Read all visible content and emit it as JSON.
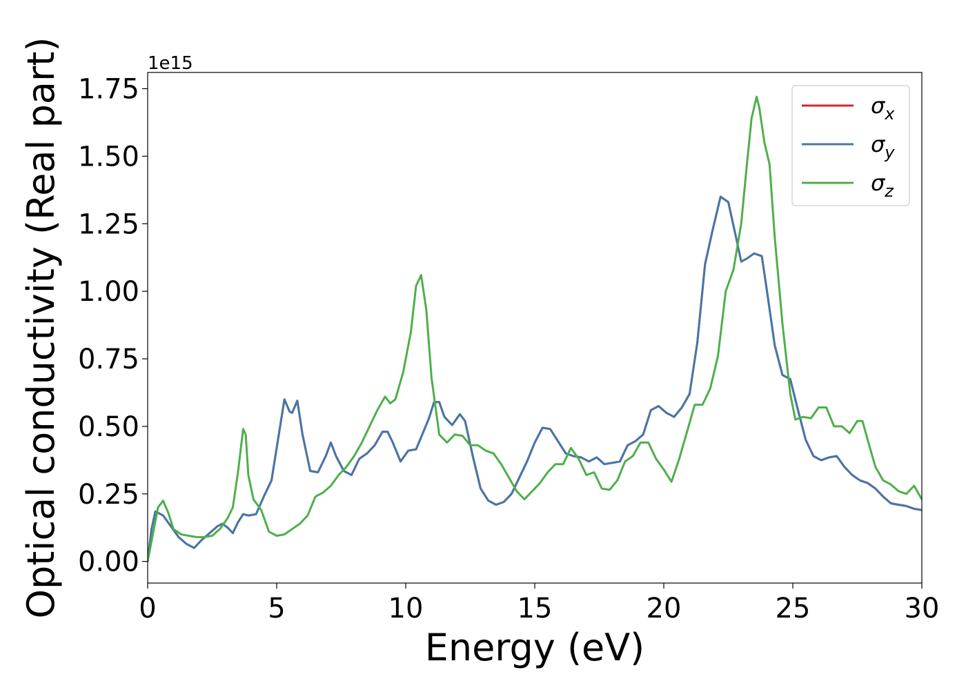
{
  "chart_data": {
    "type": "line",
    "xlabel": "Energy (eV)",
    "ylabel": "Optical conductivity (Real part)",
    "y_offset_label": "1e15",
    "y_scale_factor": 1000000000000000.0,
    "xlim": [
      0,
      30
    ],
    "ylim": [
      -0.08,
      1.81
    ],
    "xticks": [
      0,
      5,
      10,
      15,
      20,
      25,
      30
    ],
    "xtick_labels": [
      "0",
      "5",
      "10",
      "15",
      "20",
      "25",
      "30"
    ],
    "yticks": [
      0.0,
      0.25,
      0.5,
      0.75,
      1.0,
      1.25,
      1.5,
      1.75
    ],
    "ytick_labels": [
      "0.00",
      "0.25",
      "0.50",
      "0.75",
      "1.00",
      "1.25",
      "1.50",
      "1.75"
    ],
    "grid": false,
    "legend": {
      "placement": "top-right",
      "entries": [
        {
          "symbol": "σ",
          "sub": "x",
          "color": "#d62728"
        },
        {
          "symbol": "σ",
          "sub": "y",
          "color": "#4477aa"
        },
        {
          "symbol": "σ",
          "sub": "z",
          "color": "#4daf4a"
        }
      ]
    },
    "series": [
      {
        "name": "σx",
        "color": "#d62728",
        "x": [
          0.0,
          0.15,
          0.3,
          0.6,
          0.9,
          1.2,
          1.5,
          1.8,
          2.1,
          2.4,
          2.7,
          2.9,
          3.1,
          3.3,
          3.5,
          3.7,
          3.9,
          4.2,
          4.5,
          4.8,
          5.0,
          5.3,
          5.5,
          5.6,
          5.8,
          6.0,
          6.3,
          6.6,
          6.9,
          7.1,
          7.3,
          7.6,
          7.9,
          8.2,
          8.5,
          8.8,
          9.1,
          9.3,
          9.5,
          9.8,
          10.1,
          10.4,
          10.6,
          10.9,
          11.1,
          11.3,
          11.5,
          11.8,
          12.1,
          12.3,
          12.6,
          12.9,
          13.2,
          13.5,
          13.8,
          14.1,
          14.4,
          14.7,
          15.0,
          15.3,
          15.6,
          15.9,
          16.2,
          16.5,
          16.8,
          17.1,
          17.4,
          17.7,
          18.0,
          18.3,
          18.6,
          18.9,
          19.2,
          19.5,
          19.8,
          20.1,
          20.4,
          20.7,
          21.0,
          21.3,
          21.6,
          21.9,
          22.2,
          22.5,
          22.8,
          23.0,
          23.2,
          23.5,
          23.8,
          24.0,
          24.3,
          24.6,
          24.9,
          25.2,
          25.5,
          25.8,
          26.1,
          26.4,
          26.7,
          27.0,
          27.3,
          27.6,
          27.9,
          28.2,
          28.5,
          28.8,
          29.1,
          29.4,
          29.7,
          30.0
        ],
        "y": [
          0.0,
          0.12,
          0.185,
          0.17,
          0.13,
          0.09,
          0.065,
          0.05,
          0.08,
          0.105,
          0.13,
          0.14,
          0.125,
          0.105,
          0.145,
          0.175,
          0.17,
          0.175,
          0.24,
          0.3,
          0.42,
          0.6,
          0.555,
          0.55,
          0.595,
          0.47,
          0.335,
          0.33,
          0.39,
          0.44,
          0.39,
          0.335,
          0.32,
          0.38,
          0.4,
          0.43,
          0.48,
          0.48,
          0.44,
          0.37,
          0.41,
          0.415,
          0.46,
          0.53,
          0.59,
          0.59,
          0.535,
          0.505,
          0.545,
          0.52,
          0.39,
          0.27,
          0.225,
          0.21,
          0.22,
          0.25,
          0.31,
          0.37,
          0.44,
          0.495,
          0.49,
          0.445,
          0.4,
          0.39,
          0.385,
          0.37,
          0.385,
          0.36,
          0.365,
          0.37,
          0.43,
          0.445,
          0.47,
          0.56,
          0.575,
          0.55,
          0.535,
          0.57,
          0.62,
          0.81,
          1.1,
          1.23,
          1.35,
          1.33,
          1.2,
          1.11,
          1.12,
          1.14,
          1.13,
          1.0,
          0.8,
          0.69,
          0.675,
          0.56,
          0.45,
          0.39,
          0.375,
          0.385,
          0.39,
          0.35,
          0.32,
          0.3,
          0.29,
          0.27,
          0.24,
          0.215,
          0.21,
          0.205,
          0.195,
          0.19
        ]
      },
      {
        "name": "σy",
        "color": "#4477aa",
        "x": [
          0.0,
          0.15,
          0.3,
          0.6,
          0.9,
          1.2,
          1.5,
          1.8,
          2.1,
          2.4,
          2.7,
          2.9,
          3.1,
          3.3,
          3.5,
          3.7,
          3.9,
          4.2,
          4.5,
          4.8,
          5.0,
          5.3,
          5.5,
          5.6,
          5.8,
          6.0,
          6.3,
          6.6,
          6.9,
          7.1,
          7.3,
          7.6,
          7.9,
          8.2,
          8.5,
          8.8,
          9.1,
          9.3,
          9.5,
          9.8,
          10.1,
          10.4,
          10.6,
          10.9,
          11.1,
          11.3,
          11.5,
          11.8,
          12.1,
          12.3,
          12.6,
          12.9,
          13.2,
          13.5,
          13.8,
          14.1,
          14.4,
          14.7,
          15.0,
          15.3,
          15.6,
          15.9,
          16.2,
          16.5,
          16.8,
          17.1,
          17.4,
          17.7,
          18.0,
          18.3,
          18.6,
          18.9,
          19.2,
          19.5,
          19.8,
          20.1,
          20.4,
          20.7,
          21.0,
          21.3,
          21.6,
          21.9,
          22.2,
          22.5,
          22.8,
          23.0,
          23.2,
          23.5,
          23.8,
          24.0,
          24.3,
          24.6,
          24.9,
          25.2,
          25.5,
          25.8,
          26.1,
          26.4,
          26.7,
          27.0,
          27.3,
          27.6,
          27.9,
          28.2,
          28.5,
          28.8,
          29.1,
          29.4,
          29.7,
          30.0
        ],
        "y": [
          0.0,
          0.12,
          0.185,
          0.17,
          0.13,
          0.09,
          0.065,
          0.05,
          0.08,
          0.105,
          0.13,
          0.14,
          0.125,
          0.105,
          0.145,
          0.175,
          0.17,
          0.175,
          0.24,
          0.3,
          0.42,
          0.6,
          0.555,
          0.55,
          0.595,
          0.47,
          0.335,
          0.33,
          0.39,
          0.44,
          0.39,
          0.335,
          0.32,
          0.38,
          0.4,
          0.43,
          0.48,
          0.48,
          0.44,
          0.37,
          0.41,
          0.415,
          0.46,
          0.53,
          0.59,
          0.59,
          0.535,
          0.505,
          0.545,
          0.52,
          0.39,
          0.27,
          0.225,
          0.21,
          0.22,
          0.25,
          0.31,
          0.37,
          0.44,
          0.495,
          0.49,
          0.445,
          0.4,
          0.39,
          0.385,
          0.37,
          0.385,
          0.36,
          0.365,
          0.37,
          0.43,
          0.445,
          0.47,
          0.56,
          0.575,
          0.55,
          0.535,
          0.57,
          0.62,
          0.81,
          1.1,
          1.23,
          1.35,
          1.33,
          1.2,
          1.11,
          1.12,
          1.14,
          1.13,
          1.0,
          0.8,
          0.69,
          0.675,
          0.56,
          0.45,
          0.39,
          0.375,
          0.385,
          0.39,
          0.35,
          0.32,
          0.3,
          0.29,
          0.27,
          0.24,
          0.215,
          0.21,
          0.205,
          0.195,
          0.19
        ]
      },
      {
        "name": "σz",
        "color": "#4daf4a",
        "x": [
          0.0,
          0.2,
          0.4,
          0.6,
          0.8,
          1.0,
          1.3,
          1.6,
          1.9,
          2.2,
          2.5,
          2.8,
          3.1,
          3.3,
          3.5,
          3.7,
          3.8,
          3.9,
          4.1,
          4.4,
          4.7,
          5.0,
          5.3,
          5.6,
          5.9,
          6.2,
          6.5,
          6.8,
          7.1,
          7.4,
          7.7,
          8.0,
          8.3,
          8.6,
          8.9,
          9.2,
          9.4,
          9.6,
          9.9,
          10.2,
          10.4,
          10.6,
          10.8,
          11.0,
          11.3,
          11.6,
          11.9,
          12.2,
          12.5,
          12.8,
          13.1,
          13.4,
          13.7,
          14.0,
          14.3,
          14.6,
          14.9,
          15.2,
          15.5,
          15.8,
          16.1,
          16.4,
          16.7,
          17.0,
          17.3,
          17.6,
          17.9,
          18.2,
          18.5,
          18.8,
          19.1,
          19.4,
          19.7,
          20.0,
          20.3,
          20.6,
          20.9,
          21.2,
          21.5,
          21.8,
          22.1,
          22.4,
          22.7,
          23.0,
          23.2,
          23.4,
          23.6,
          23.7,
          23.9,
          24.1,
          24.3,
          24.6,
          24.9,
          25.1,
          25.4,
          25.7,
          26.0,
          26.3,
          26.6,
          26.9,
          27.2,
          27.5,
          27.7,
          27.9,
          28.2,
          28.5,
          28.8,
          29.1,
          29.4,
          29.7,
          30.0
        ],
        "y": [
          0.0,
          0.1,
          0.2,
          0.225,
          0.18,
          0.12,
          0.1,
          0.095,
          0.09,
          0.09,
          0.095,
          0.12,
          0.16,
          0.2,
          0.33,
          0.49,
          0.47,
          0.32,
          0.23,
          0.19,
          0.11,
          0.095,
          0.1,
          0.12,
          0.14,
          0.17,
          0.24,
          0.255,
          0.28,
          0.32,
          0.35,
          0.39,
          0.44,
          0.5,
          0.56,
          0.61,
          0.585,
          0.6,
          0.7,
          0.85,
          1.02,
          1.06,
          0.93,
          0.68,
          0.47,
          0.44,
          0.47,
          0.465,
          0.43,
          0.43,
          0.41,
          0.4,
          0.36,
          0.31,
          0.26,
          0.23,
          0.26,
          0.29,
          0.33,
          0.36,
          0.36,
          0.42,
          0.38,
          0.32,
          0.33,
          0.27,
          0.265,
          0.3,
          0.37,
          0.39,
          0.44,
          0.44,
          0.38,
          0.34,
          0.295,
          0.38,
          0.48,
          0.58,
          0.58,
          0.64,
          0.76,
          1.0,
          1.08,
          1.25,
          1.45,
          1.64,
          1.72,
          1.68,
          1.55,
          1.47,
          1.2,
          0.88,
          0.62,
          0.525,
          0.535,
          0.53,
          0.57,
          0.57,
          0.5,
          0.5,
          0.475,
          0.52,
          0.52,
          0.45,
          0.35,
          0.3,
          0.285,
          0.26,
          0.25,
          0.28,
          0.23
        ]
      }
    ]
  }
}
